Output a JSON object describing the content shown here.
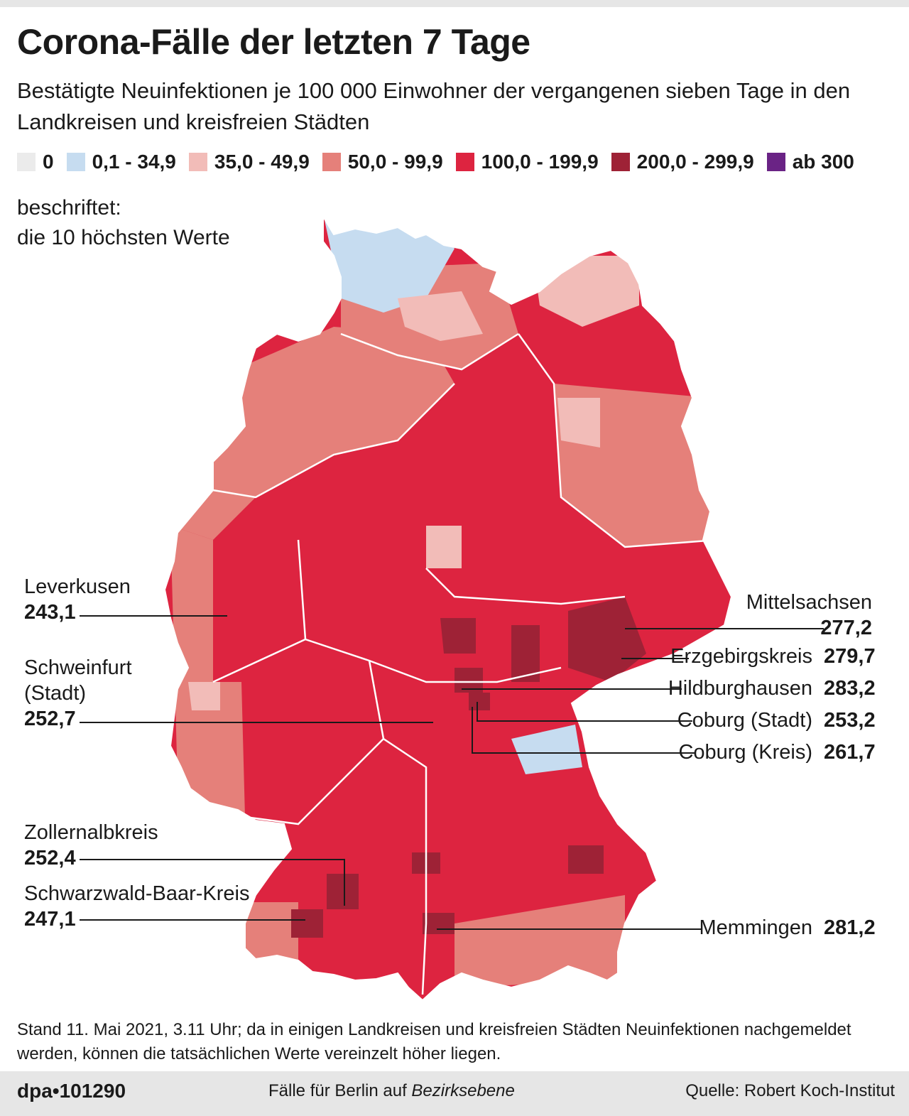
{
  "title": "Corona-Fälle der letzten 7 Tage",
  "subtitle": "Bestätigte Neuinfektionen je 100 000 Einwohner der vergangenen sieben Tage in den Landkreisen und kreisfreien Städten",
  "legend": [
    {
      "label": "0",
      "color": "#ebebeb"
    },
    {
      "label": "0,1 - 34,9",
      "color": "#c6dcf0"
    },
    {
      "label": "35,0 - 49,9",
      "color": "#f2bcb8"
    },
    {
      "label": "50,0 - 99,9",
      "color": "#e5807a"
    },
    {
      "label": "100,0 - 199,9",
      "color": "#dd2440"
    },
    {
      "label": "200,0 - 299,9",
      "color": "#9e2236"
    },
    {
      "label": "ab 300",
      "color": "#6a2385"
    }
  ],
  "note_line1": "beschriftet:",
  "note_line2": "die 10 höchsten Werte",
  "labels": {
    "leverkusen": {
      "name": "Leverkusen",
      "value": "243,1"
    },
    "schweinfurt": {
      "name1": "Schweinfurt",
      "name2": "(Stadt)",
      "value": "252,7"
    },
    "zollernalb": {
      "name": "Zollernalbkreis",
      "value": "252,4"
    },
    "schwarzwald": {
      "name": "Schwarzwald-Baar-Kreis",
      "value": "247,1"
    },
    "mittelsachsen": {
      "name": "Mittelsachsen",
      "value": "277,2"
    },
    "erzgebirge": {
      "name": "Erzgebirgskreis",
      "value": "279,7"
    },
    "hildburghausen": {
      "name": "Hildburghausen",
      "value": "283,2"
    },
    "coburg_stadt": {
      "name": "Coburg (Stadt)",
      "value": "253,2"
    },
    "coburg_kreis": {
      "name": "Coburg (Kreis)",
      "value": "261,7"
    },
    "memmingen": {
      "name": "Memmingen",
      "value": "281,2"
    }
  },
  "footnote": "Stand 11. Mai 2021, 3.11 Uhr; da in einigen Landkreisen und kreisfreien Städten Neuinfektionen nachgemeldet werden, können die tatsächlichen Werte vereinzelt höher liegen.",
  "brand": "dpa•101290",
  "berlin_prefix": "Fälle für Berlin auf ",
  "berlin_emph": "Bezirksebene",
  "source": "Quelle: Robert Koch-Institut"
}
